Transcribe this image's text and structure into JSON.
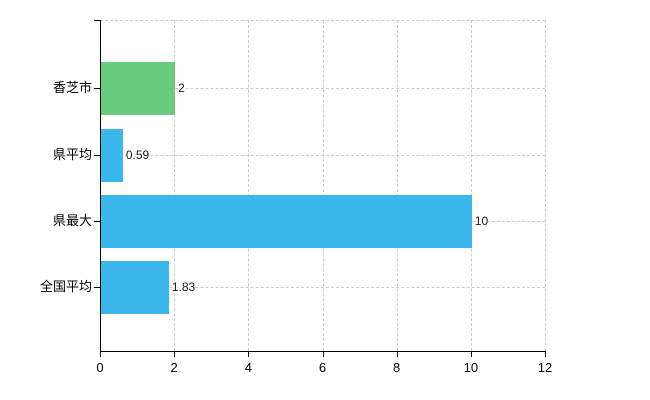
{
  "chart_data": {
    "type": "bar",
    "orientation": "horizontal",
    "title": "",
    "xlabel": "",
    "ylabel": "",
    "categories": [
      "香芝市",
      "県平均",
      "県最大",
      "全国平均"
    ],
    "values": [
      2,
      0.59,
      10,
      1.83
    ],
    "value_labels": [
      "2",
      "0.59",
      "10",
      "1.83"
    ],
    "x_ticks": [
      0,
      2,
      4,
      6,
      8,
      10,
      12
    ],
    "xlim": [
      0,
      12
    ],
    "grid": true,
    "legend": false,
    "colors": {
      "bars": [
        "#68cb7e",
        "#3bb8eb",
        "#3bb8eb",
        "#3bb8eb"
      ],
      "grid": "#c9cdc9",
      "axis": "#000000",
      "text": "#1a1a1a",
      "background": "#ffffff"
    }
  }
}
